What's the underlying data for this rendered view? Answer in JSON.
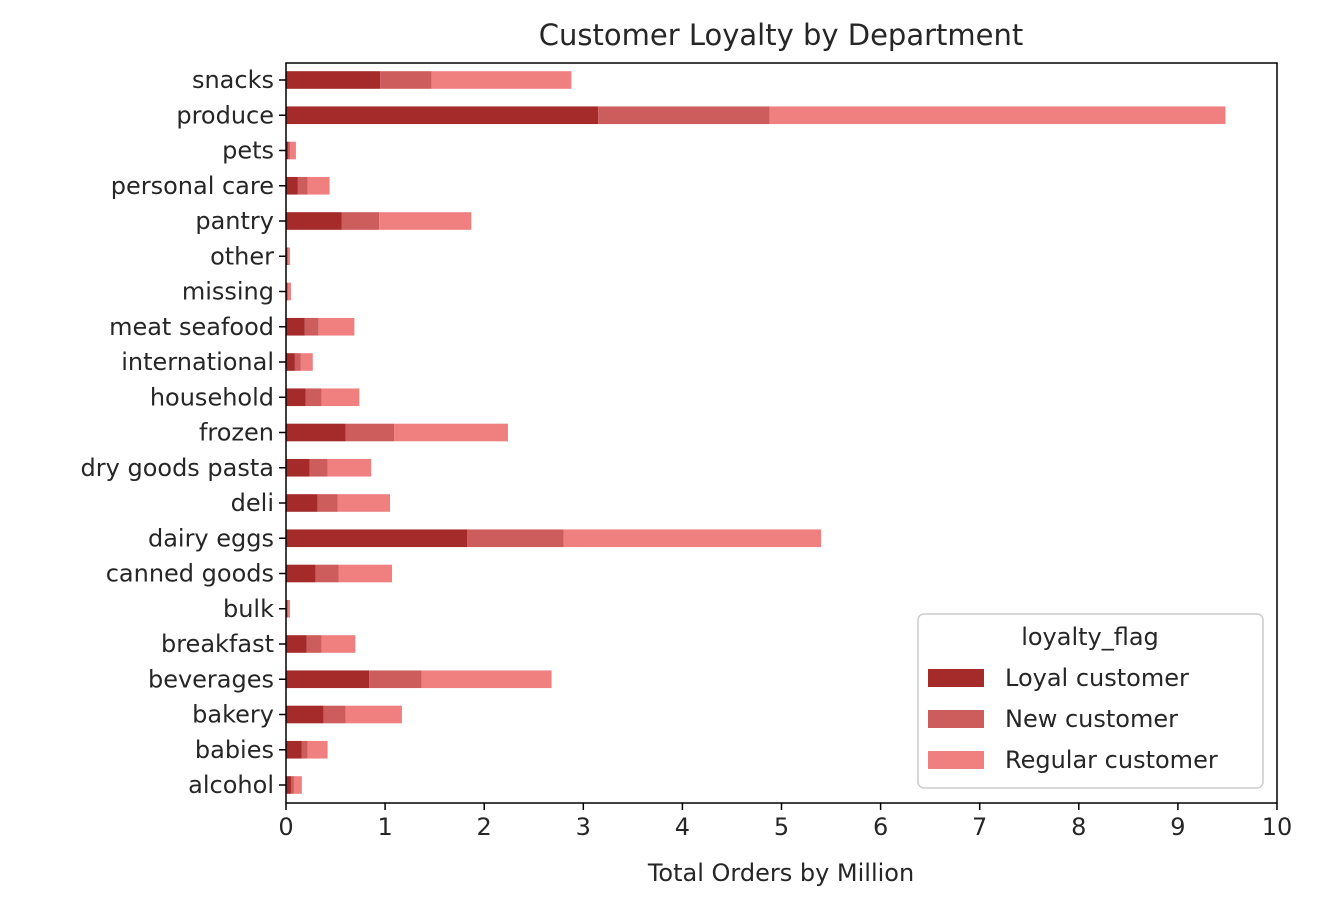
{
  "chart_data": {
    "type": "bar",
    "orientation": "horizontal",
    "stacked": true,
    "title": "Customer Loyalty by Department",
    "xlabel": "Total Orders by Million",
    "ylabel": "",
    "xlim": [
      0,
      10
    ],
    "xticks": [
      "0",
      "1",
      "2",
      "3",
      "4",
      "5",
      "6",
      "7",
      "8",
      "9",
      "10"
    ],
    "grid": false,
    "legend": {
      "title": "loyalty_flag",
      "position": "lower-right"
    },
    "categories": [
      "alcohol",
      "babies",
      "bakery",
      "beverages",
      "breakfast",
      "bulk",
      "canned goods",
      "dairy eggs",
      "deli",
      "dry goods pasta",
      "frozen",
      "household",
      "international",
      "meat seafood",
      "missing",
      "other",
      "pantry",
      "personal care",
      "pets",
      "produce",
      "snacks"
    ],
    "series": [
      {
        "name": "Loyal customer",
        "color": "#a52a2a",
        "values": [
          0.05,
          0.16,
          0.38,
          0.84,
          0.21,
          0.01,
          0.3,
          1.83,
          0.32,
          0.24,
          0.6,
          0.2,
          0.09,
          0.19,
          0.01,
          0.01,
          0.56,
          0.12,
          0.02,
          3.15,
          0.95
        ]
      },
      {
        "name": "New customer",
        "color": "#cd5c5c",
        "values": [
          0.03,
          0.06,
          0.22,
          0.53,
          0.15,
          0.01,
          0.23,
          0.97,
          0.2,
          0.18,
          0.49,
          0.16,
          0.06,
          0.14,
          0.01,
          0.01,
          0.38,
          0.1,
          0.02,
          1.73,
          0.52
        ]
      },
      {
        "name": "Regular customer",
        "color": "#f08080",
        "values": [
          0.08,
          0.2,
          0.57,
          1.31,
          0.34,
          0.02,
          0.54,
          2.6,
          0.53,
          0.44,
          1.15,
          0.38,
          0.12,
          0.36,
          0.03,
          0.02,
          0.93,
          0.22,
          0.06,
          4.6,
          1.41
        ]
      }
    ]
  }
}
